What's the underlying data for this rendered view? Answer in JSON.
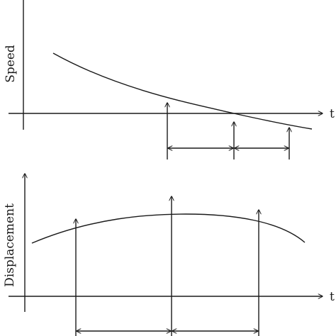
{
  "figure": {
    "line_color": "#1a1a1a",
    "background": "#ffffff",
    "top_panel": {
      "ylabel": "Speed",
      "xlabel": "t",
      "curve": "decreasing speed crossing zero",
      "markers": 3
    },
    "bottom_panel": {
      "ylabel": "Displacement",
      "xlabel": "t",
      "curve": "displacement with a maximum",
      "markers": 3
    }
  }
}
